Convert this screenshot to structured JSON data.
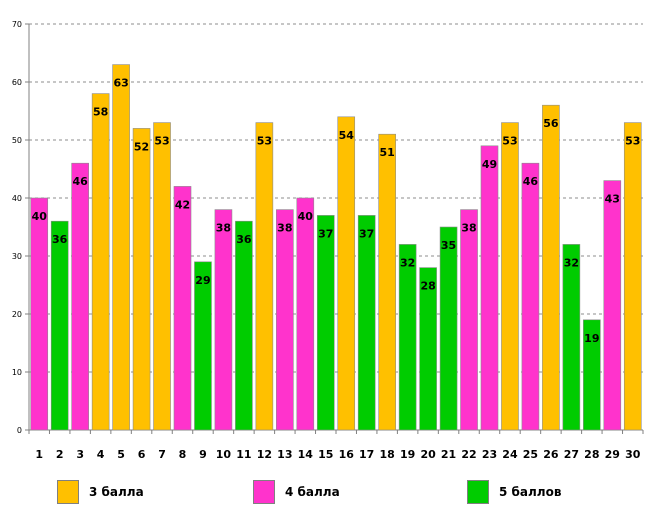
{
  "chart_data": {
    "type": "bar",
    "title": "",
    "xlabel": "",
    "ylabel": "",
    "ylim": [
      0,
      70
    ],
    "yticks": [
      0,
      10,
      20,
      30,
      40,
      50,
      60,
      70
    ],
    "grid": true,
    "legend_position": "bottom",
    "categories": [
      "1",
      "2",
      "3",
      "4",
      "5",
      "6",
      "7",
      "8",
      "9",
      "10",
      "11",
      "12",
      "13",
      "14",
      "15",
      "16",
      "17",
      "18",
      "19",
      "20",
      "21",
      "22",
      "23",
      "24",
      "25",
      "26",
      "27",
      "28",
      "29",
      "30"
    ],
    "values": [
      40,
      36,
      46,
      58,
      63,
      52,
      53,
      42,
      29,
      38,
      36,
      53,
      38,
      40,
      37,
      54,
      37,
      51,
      32,
      28,
      35,
      38,
      49,
      53,
      46,
      56,
      32,
      19,
      43,
      53
    ],
    "grades": [
      "4",
      "5",
      "4",
      "3",
      "3",
      "3",
      "3",
      "4",
      "5",
      "4",
      "5",
      "3",
      "4",
      "4",
      "5",
      "3",
      "5",
      "3",
      "5",
      "5",
      "5",
      "4",
      "4",
      "3",
      "4",
      "3",
      "5",
      "5",
      "4",
      "3"
    ],
    "series": [
      {
        "key": "3",
        "name": "3 балла",
        "color": "#FFC000"
      },
      {
        "key": "4",
        "name": "4 балла",
        "color": "#FF33CC"
      },
      {
        "key": "5",
        "name": "5 баллов",
        "color": "#00CC00"
      }
    ]
  }
}
